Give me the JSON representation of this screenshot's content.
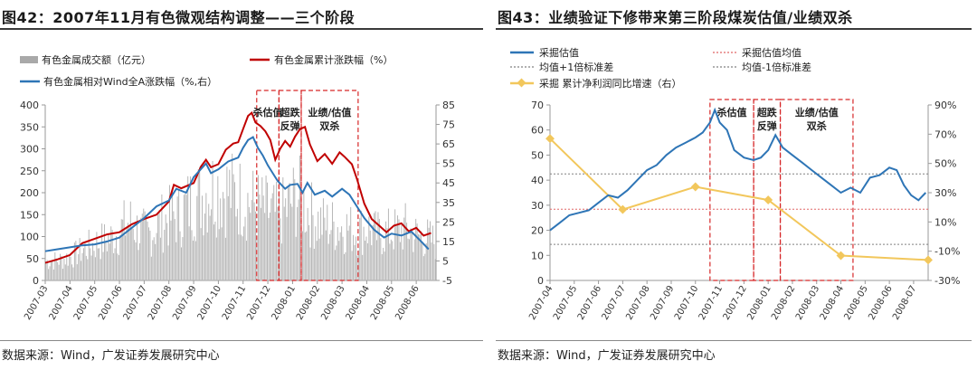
{
  "left": {
    "title": "图42：2007年11月有色微观结构调整——三个阶段",
    "source": "数据来源：Wind，广发证券发展研究中心",
    "chart_data": {
      "type": "bar+line",
      "legend": [
        {
          "name": "有色金属成交额（亿元）",
          "kind": "bar",
          "color": "#a9a9a9"
        },
        {
          "name": "有色金属累计涨跌幅（%）",
          "kind": "line",
          "color": "#c00000"
        },
        {
          "name": "有色金属相对Wind全A涨跌幅（%,右）",
          "kind": "line",
          "color": "#2e75b6"
        }
      ],
      "y_left": {
        "min": 0,
        "max": 400,
        "ticks": [
          0,
          50,
          100,
          150,
          200,
          250,
          300,
          350,
          400
        ]
      },
      "y_right": {
        "min": -5,
        "max": 85,
        "ticks": [
          -5,
          5,
          15,
          25,
          35,
          45,
          55,
          65,
          75,
          85
        ]
      },
      "x_ticks": [
        "2007-03",
        "2007-04",
        "2007-05",
        "2007-06",
        "2007-07",
        "2007-08",
        "2007-09",
        "2007-10",
        "2007-11",
        "2007-12",
        "2008-01",
        "2008-02",
        "2008-03",
        "2008-04",
        "2008-05",
        "2008-06"
      ],
      "x_range": [
        0,
        15.8
      ],
      "annotations": [
        {
          "label": [
            "杀估值"
          ],
          "x_start": 8.55,
          "x_end": 9.45
        },
        {
          "label": [
            "超跌",
            "反弹"
          ],
          "x_start": 9.45,
          "x_end": 10.35
        },
        {
          "label": [
            "业绩/估值",
            "双杀"
          ],
          "x_start": 10.35,
          "x_end": 12.65
        }
      ],
      "series_cum": [
        [
          0.0,
          40
        ],
        [
          0.5,
          48
        ],
        [
          1.0,
          58
        ],
        [
          1.5,
          85
        ],
        [
          2.0,
          95
        ],
        [
          2.5,
          105
        ],
        [
          3.0,
          110
        ],
        [
          3.5,
          128
        ],
        [
          4.0,
          140
        ],
        [
          4.5,
          150
        ],
        [
          5.0,
          180
        ],
        [
          5.2,
          218
        ],
        [
          5.5,
          210
        ],
        [
          6.0,
          222
        ],
        [
          6.3,
          260
        ],
        [
          6.5,
          275
        ],
        [
          6.7,
          258
        ],
        [
          7.0,
          265
        ],
        [
          7.3,
          298
        ],
        [
          7.6,
          312
        ],
        [
          7.8,
          315
        ],
        [
          8.0,
          345
        ],
        [
          8.2,
          375
        ],
        [
          8.35,
          382
        ],
        [
          8.5,
          360
        ],
        [
          8.7,
          352
        ],
        [
          8.9,
          340
        ],
        [
          9.1,
          320
        ],
        [
          9.3,
          275
        ],
        [
          9.5,
          300
        ],
        [
          9.7,
          318
        ],
        [
          9.9,
          305
        ],
        [
          10.1,
          328
        ],
        [
          10.3,
          345
        ],
        [
          10.5,
          350
        ],
        [
          10.7,
          310
        ],
        [
          11.0,
          272
        ],
        [
          11.3,
          288
        ],
        [
          11.6,
          266
        ],
        [
          11.9,
          292
        ],
        [
          12.1,
          282
        ],
        [
          12.4,
          265
        ],
        [
          12.6,
          232
        ],
        [
          12.9,
          175
        ],
        [
          13.2,
          140
        ],
        [
          13.5,
          125
        ],
        [
          13.8,
          110
        ],
        [
          14.1,
          125
        ],
        [
          14.4,
          130
        ],
        [
          14.7,
          112
        ],
        [
          15.0,
          120
        ],
        [
          15.3,
          102
        ],
        [
          15.6,
          108
        ]
      ],
      "series_rel": [
        [
          0.0,
          10.0
        ],
        [
          0.5,
          11.0
        ],
        [
          1.0,
          12.0
        ],
        [
          1.5,
          13.0
        ],
        [
          2.0,
          13.5
        ],
        [
          2.5,
          15.0
        ],
        [
          3.0,
          17.0
        ],
        [
          3.5,
          22.0
        ],
        [
          4.0,
          27.0
        ],
        [
          4.5,
          33.0
        ],
        [
          5.0,
          36.0
        ],
        [
          5.3,
          42.0
        ],
        [
          5.7,
          40.0
        ],
        [
          6.0,
          48.0
        ],
        [
          6.5,
          55.0
        ],
        [
          6.7,
          50.0
        ],
        [
          7.0,
          52.0
        ],
        [
          7.4,
          56.0
        ],
        [
          7.8,
          58.0
        ],
        [
          8.0,
          63.0
        ],
        [
          8.2,
          67.0
        ],
        [
          8.4,
          68.5
        ],
        [
          8.6,
          63.0
        ],
        [
          8.8,
          59.0
        ],
        [
          9.0,
          54.0
        ],
        [
          9.2,
          50.0
        ],
        [
          9.4,
          46.0
        ],
        [
          9.7,
          42.0
        ],
        [
          9.9,
          44.0
        ],
        [
          10.2,
          44.5
        ],
        [
          10.4,
          40.0
        ],
        [
          10.6,
          45.0
        ],
        [
          10.9,
          39.0
        ],
        [
          11.3,
          41.0
        ],
        [
          11.6,
          38.0
        ],
        [
          12.0,
          42.0
        ],
        [
          12.3,
          39.0
        ],
        [
          12.6,
          33.0
        ],
        [
          12.9,
          27.0
        ],
        [
          13.3,
          21.0
        ],
        [
          13.7,
          17.0
        ],
        [
          14.0,
          19.0
        ],
        [
          14.4,
          18.0
        ],
        [
          14.8,
          20.0
        ],
        [
          15.2,
          15.0
        ],
        [
          15.5,
          11.0
        ]
      ],
      "volume_profile": [
        [
          0.0,
          58
        ],
        [
          0.6,
          62
        ],
        [
          1.1,
          75
        ],
        [
          1.6,
          95
        ],
        [
          2.1,
          115
        ],
        [
          2.6,
          125
        ],
        [
          3.0,
          150
        ],
        [
          3.4,
          180
        ],
        [
          3.8,
          150
        ],
        [
          4.2,
          140
        ],
        [
          4.6,
          170
        ],
        [
          5.0,
          190
        ],
        [
          5.4,
          195
        ],
        [
          5.8,
          230
        ],
        [
          6.2,
          250
        ],
        [
          6.6,
          275
        ],
        [
          7.0,
          280
        ],
        [
          7.4,
          270
        ],
        [
          7.8,
          255
        ],
        [
          8.2,
          240
        ],
        [
          8.6,
          225
        ],
        [
          9.0,
          210
        ],
        [
          9.4,
          195
        ],
        [
          9.8,
          220
        ],
        [
          10.2,
          260
        ],
        [
          10.6,
          215
        ],
        [
          11.0,
          180
        ],
        [
          11.4,
          170
        ],
        [
          11.8,
          165
        ],
        [
          12.2,
          160
        ],
        [
          12.6,
          150
        ],
        [
          13.0,
          160
        ],
        [
          13.4,
          140
        ],
        [
          13.8,
          145
        ],
        [
          14.2,
          150
        ],
        [
          14.6,
          158
        ],
        [
          15.0,
          138
        ],
        [
          15.4,
          130
        ],
        [
          15.8,
          115
        ]
      ]
    }
  },
  "right": {
    "title": "图43：业绩验证下修带来第三阶段煤炭估值/业绩双杀",
    "source": "数据来源：Wind，广发证券发展研究中心",
    "chart_data": {
      "type": "line",
      "legend": [
        {
          "name": "采掘估值",
          "kind": "line",
          "color": "#2e75b6"
        },
        {
          "name": "采掘估值均值",
          "kind": "dotted",
          "color": "#e06666"
        },
        {
          "name": "均值+1倍标准差",
          "kind": "dotted",
          "color": "#808080"
        },
        {
          "name": "均值-1倍标准差",
          "kind": "dotted",
          "color": "#808080"
        },
        {
          "name": "采掘 累计净利润同比增速（右）",
          "kind": "line-diamond",
          "color": "#f2c75c"
        }
      ],
      "y_left": {
        "min": 0,
        "max": 70,
        "ticks": [
          0,
          10,
          20,
          30,
          40,
          50,
          60,
          70
        ]
      },
      "y_right": {
        "min": -30,
        "max": 90,
        "ticks": [
          "-30%",
          "-10%",
          "10%",
          "30%",
          "50%",
          "70%",
          "90%"
        ]
      },
      "x_ticks": [
        "2007-04",
        "2007-05",
        "2007-06",
        "2007-07",
        "2007-08",
        "2007-09",
        "2007-10",
        "2007-11",
        "2007-12",
        "2008-01",
        "2008-02",
        "2008-03",
        "2008-04",
        "2008-05",
        "2008-06",
        "2008-07"
      ],
      "x_range": [
        0,
        15.6
      ],
      "hlines": {
        "mean": 28.4,
        "plus_1sd": 42.5,
        "minus_1sd": 14.4
      },
      "annotations": [
        {
          "label": [
            "杀估值"
          ],
          "x_start": 6.6,
          "x_end": 8.4
        },
        {
          "label": [
            "超跌",
            "反弹"
          ],
          "x_start": 8.4,
          "x_end": 9.5
        },
        {
          "label": [
            "业绩/估值",
            "双杀"
          ],
          "x_start": 9.5,
          "x_end": 12.5
        }
      ],
      "valuation": [
        [
          0.0,
          20
        ],
        [
          0.4,
          23
        ],
        [
          0.8,
          26
        ],
        [
          1.2,
          27
        ],
        [
          1.6,
          28
        ],
        [
          2.0,
          31
        ],
        [
          2.4,
          34
        ],
        [
          2.8,
          33
        ],
        [
          3.2,
          36
        ],
        [
          3.6,
          40
        ],
        [
          4.0,
          44
        ],
        [
          4.4,
          46
        ],
        [
          4.8,
          50
        ],
        [
          5.2,
          53
        ],
        [
          5.6,
          55
        ],
        [
          6.0,
          57
        ],
        [
          6.3,
          59
        ],
        [
          6.6,
          63
        ],
        [
          6.8,
          68
        ],
        [
          7.0,
          63
        ],
        [
          7.3,
          60
        ],
        [
          7.6,
          52
        ],
        [
          8.0,
          49
        ],
        [
          8.4,
          48
        ],
        [
          8.7,
          49
        ],
        [
          9.0,
          52
        ],
        [
          9.3,
          58
        ],
        [
          9.6,
          53
        ],
        [
          10.0,
          50
        ],
        [
          10.4,
          47
        ],
        [
          10.8,
          44
        ],
        [
          11.2,
          41
        ],
        [
          11.6,
          38
        ],
        [
          12.0,
          35
        ],
        [
          12.4,
          37
        ],
        [
          12.8,
          35
        ],
        [
          13.2,
          41
        ],
        [
          13.6,
          42
        ],
        [
          14.0,
          45
        ],
        [
          14.3,
          44
        ],
        [
          14.6,
          38
        ],
        [
          14.9,
          34
        ],
        [
          15.2,
          32
        ],
        [
          15.5,
          35
        ]
      ],
      "growth": [
        [
          0.0,
          67
        ],
        [
          3.0,
          18.5
        ],
        [
          6.0,
          34
        ],
        [
          9.0,
          25
        ],
        [
          12.0,
          -13
        ],
        [
          15.6,
          -16
        ]
      ]
    }
  }
}
